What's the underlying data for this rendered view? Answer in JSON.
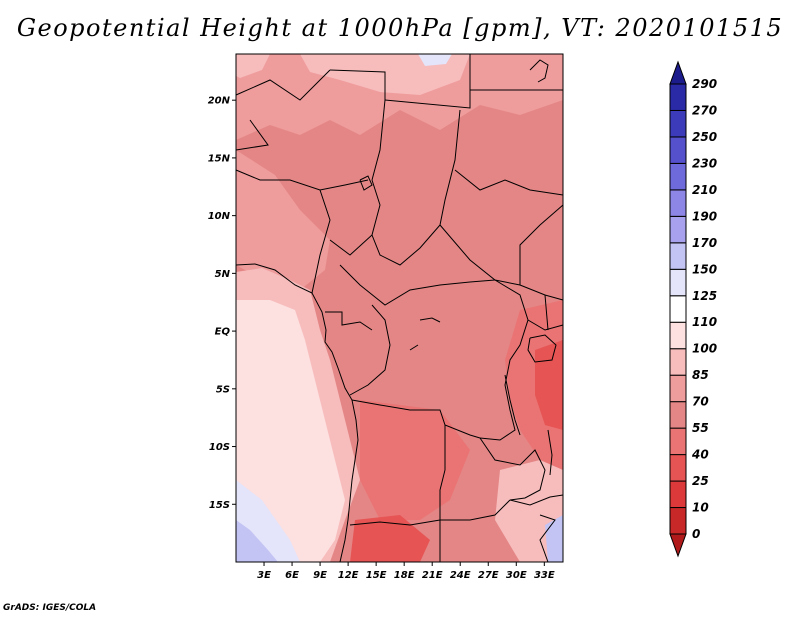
{
  "title": "Geopotential Height at 1000hPa [gpm], VT: 2020101515",
  "credit": "GrADS: IGES/COLA",
  "map": {
    "region": "Central and Southern Africa (Congo Basin)",
    "variable": "Geopotential height at 1000 hPa",
    "units": "gpm",
    "lon_range": [
      0,
      35
    ],
    "lat_range": [
      -20,
      24
    ],
    "lon_ticks": [
      {
        "value": 3,
        "label": "3E"
      },
      {
        "value": 6,
        "label": "6E"
      },
      {
        "value": 9,
        "label": "9E"
      },
      {
        "value": 12,
        "label": "12E"
      },
      {
        "value": 15,
        "label": "15E"
      },
      {
        "value": 18,
        "label": "18E"
      },
      {
        "value": 21,
        "label": "21E"
      },
      {
        "value": 24,
        "label": "24E"
      },
      {
        "value": 27,
        "label": "27E"
      },
      {
        "value": 30,
        "label": "30E"
      },
      {
        "value": 33,
        "label": "33E"
      }
    ],
    "lat_ticks": [
      {
        "value": 20,
        "label": "20N"
      },
      {
        "value": 15,
        "label": "15N"
      },
      {
        "value": 10,
        "label": "10N"
      },
      {
        "value": 5,
        "label": "5N"
      },
      {
        "value": 0,
        "label": "EQ"
      },
      {
        "value": -5,
        "label": "5S"
      },
      {
        "value": -10,
        "label": "10S"
      },
      {
        "value": -15,
        "label": "15S"
      }
    ]
  },
  "colorbar": {
    "levels": [
      "0",
      "10",
      "25",
      "40",
      "55",
      "70",
      "85",
      "100",
      "110",
      "125",
      "150",
      "170",
      "190",
      "210",
      "230",
      "250",
      "270",
      "290"
    ],
    "colors": [
      "#b01a1a",
      "#c82828",
      "#dc3a3a",
      "#e65454",
      "#ea7474",
      "#e48686",
      "#ef9c9c",
      "#f7bcbc",
      "#fde0e0",
      "#ffffff",
      "#e4e4fa",
      "#c4c4f4",
      "#a8a2ee",
      "#8e86e6",
      "#6f6adc",
      "#5550cc",
      "#3c3bba",
      "#2a2aa6",
      "#1c1c8c"
    ]
  }
}
